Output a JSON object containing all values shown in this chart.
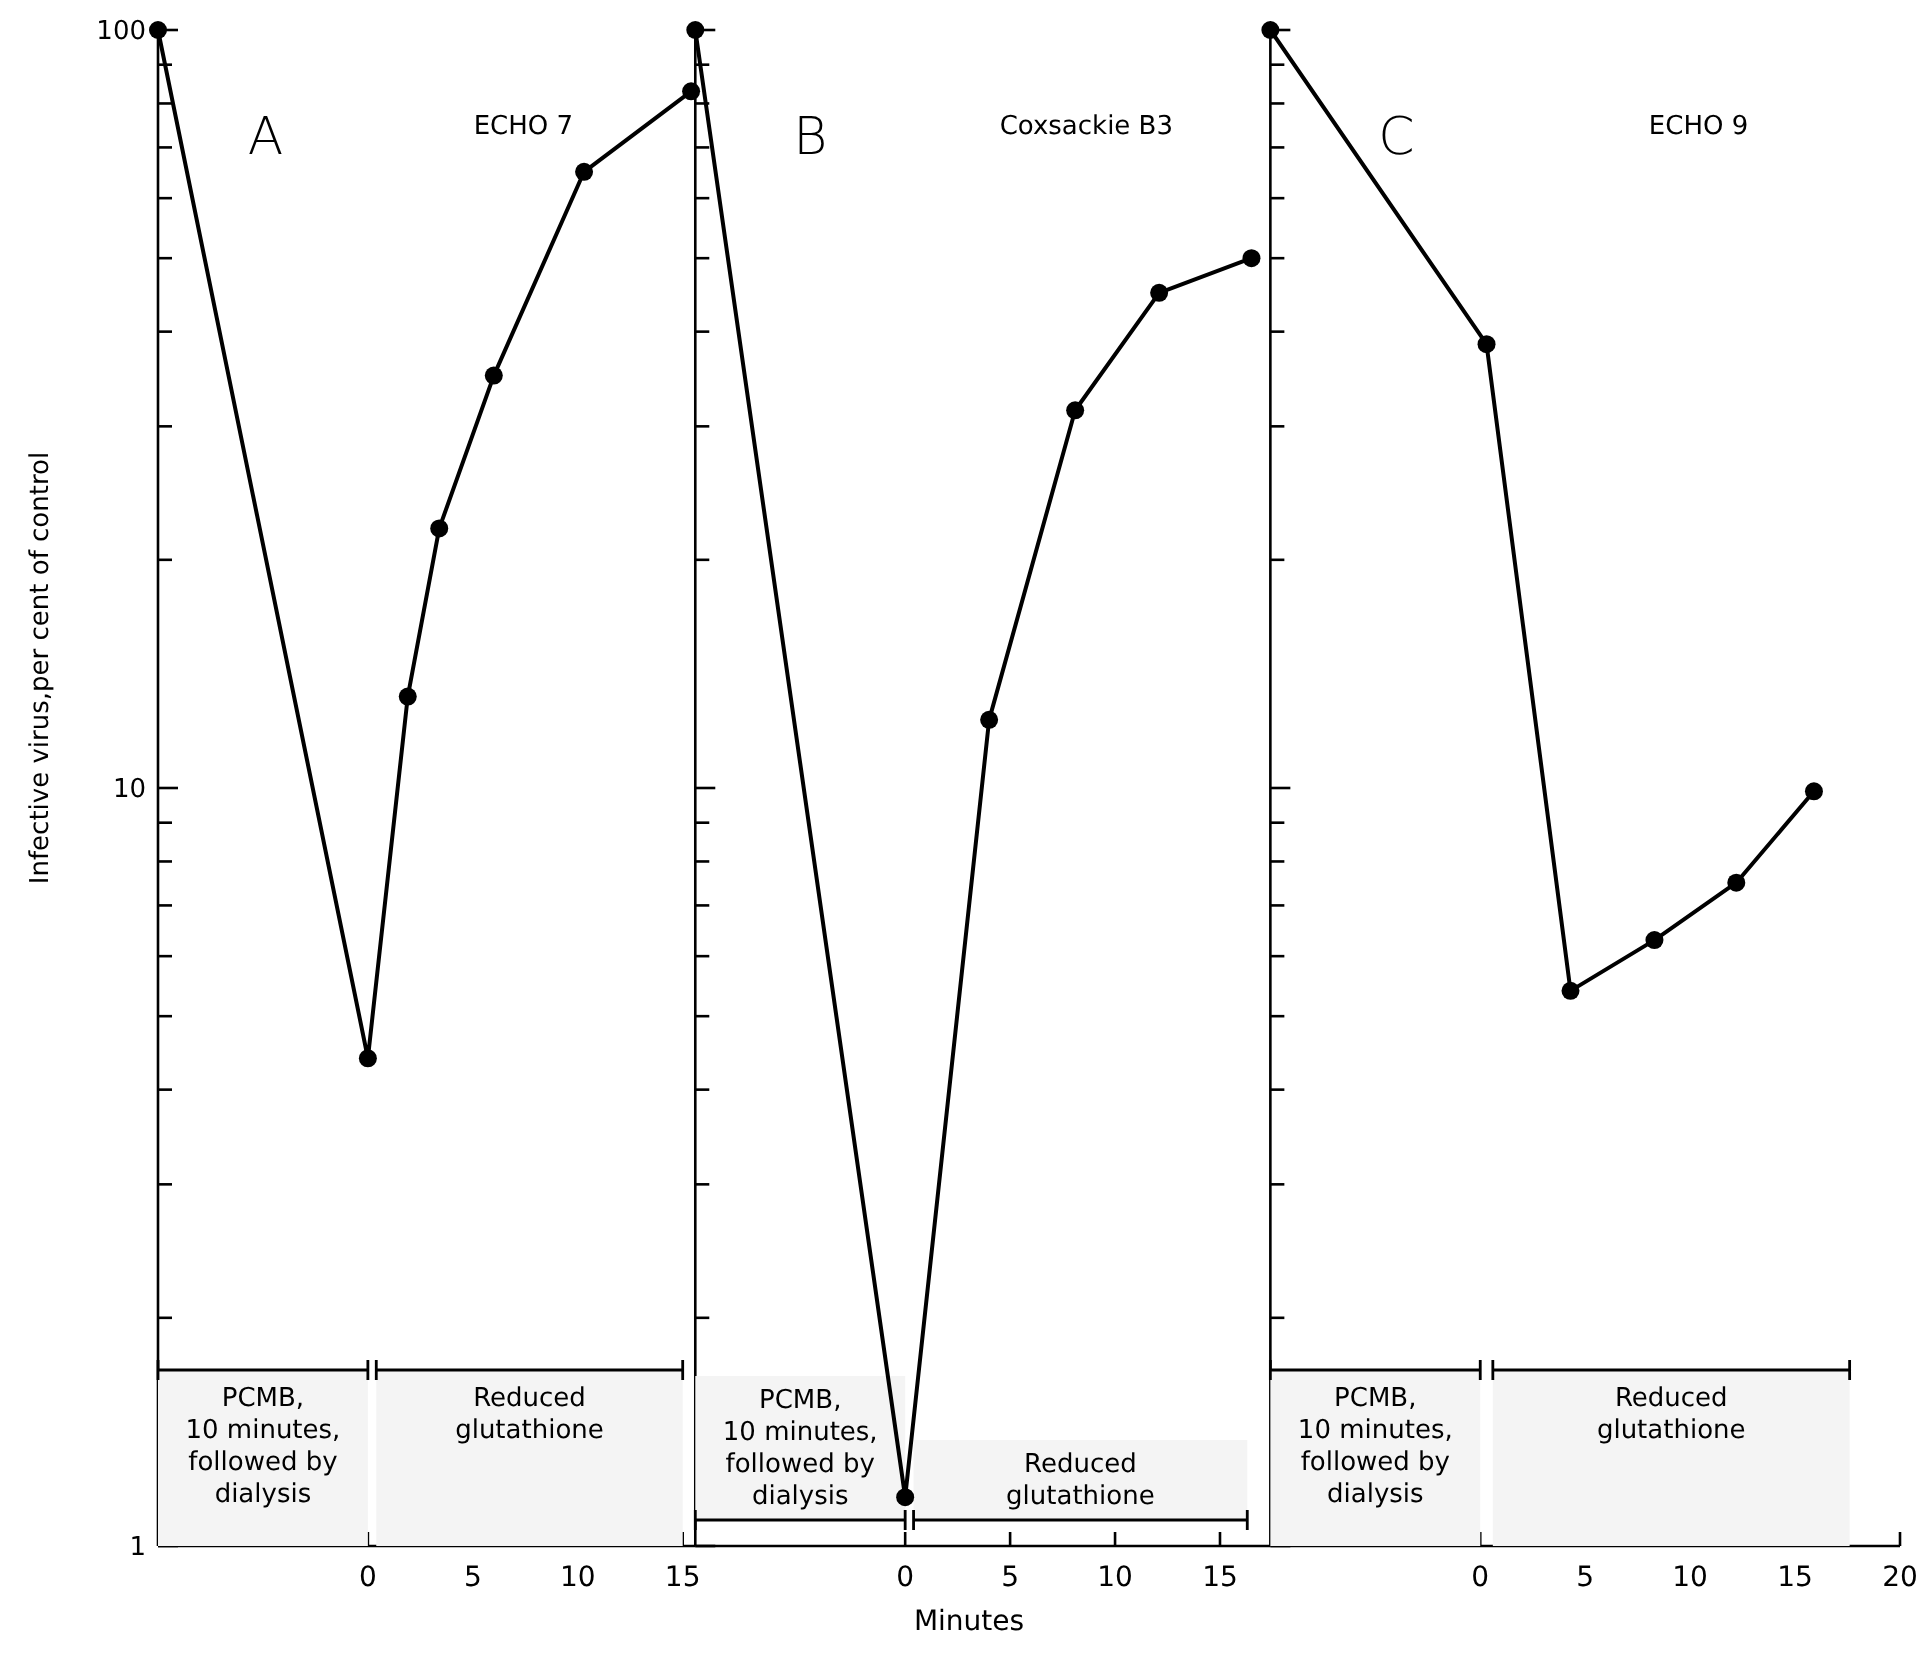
{
  "chart_data": [
    {
      "type": "line",
      "title": "A",
      "subtitle": "ECHO 7",
      "ylabel": "Infective virus,per cent of control",
      "log": true,
      "marker": "circle",
      "line_style": "solid",
      "xlim": [
        -10,
        15.6
      ],
      "xticks": [
        0,
        5,
        10,
        15
      ],
      "ylim": [
        1,
        100
      ],
      "yticks": [
        1,
        {
          "value": 2,
          "label": null
        },
        {
          "value": 3,
          "label": null
        },
        {
          "value": 4,
          "label": null
        },
        {
          "value": 5,
          "label": null
        },
        {
          "value": 6,
          "label": null
        },
        {
          "value": 7,
          "label": null
        },
        {
          "value": 8,
          "label": null
        },
        {
          "value": 9,
          "label": null
        },
        10,
        {
          "value": 20,
          "label": null
        },
        {
          "value": 30,
          "label": null
        },
        {
          "value": 40,
          "label": null
        },
        {
          "value": 50,
          "label": null
        },
        {
          "value": 60,
          "label": null
        },
        {
          "value": 70,
          "label": null
        },
        {
          "value": 80,
          "label": null
        },
        {
          "value": 90,
          "label": null
        },
        100
      ],
      "series": [
        {
          "color": "#000000",
          "x": [
            -10,
            0,
            1.9,
            3.4,
            6,
            10.3,
            15.4
          ],
          "values": [
            100,
            4.4,
            13.2,
            22,
            35,
            65,
            83
          ]
        }
      ],
      "bands": [
        {
          "axis": "x",
          "from": -10,
          "to": 0,
          "label": "PCMB,\n10 minutes,\nfollowed by\ndialysis"
        },
        {
          "axis": "x",
          "from": 0.4,
          "to": 15,
          "label": "Reduced\nglutathione"
        }
      ]
    },
    {
      "type": "line",
      "title": "B",
      "subtitle": "Coxsackie B3",
      "xlabel": "Minutes",
      "log": true,
      "marker": "circle",
      "line_style": "solid",
      "tick_labels": "x",
      "xlim": [
        -10,
        17.4
      ],
      "xticks": [
        0,
        5,
        10,
        15
      ],
      "ylim": [
        1,
        100
      ],
      "yticks": [
        1,
        {
          "value": 2,
          "label": null
        },
        {
          "value": 3,
          "label": null
        },
        {
          "value": 4,
          "label": null
        },
        {
          "value": 5,
          "label": null
        },
        {
          "value": 6,
          "label": null
        },
        {
          "value": 7,
          "label": null
        },
        {
          "value": 8,
          "label": null
        },
        {
          "value": 9,
          "label": null
        },
        10,
        {
          "value": 20,
          "label": null
        },
        {
          "value": 30,
          "label": null
        },
        {
          "value": 40,
          "label": null
        },
        {
          "value": 50,
          "label": null
        },
        {
          "value": 60,
          "label": null
        },
        {
          "value": 70,
          "label": null
        },
        {
          "value": 80,
          "label": null
        },
        {
          "value": 90,
          "label": null
        },
        100
      ],
      "series": [
        {
          "color": "#000000",
          "x": [
            -10,
            0,
            4,
            8.1,
            12.1,
            16.5
          ],
          "values": [
            100,
            1.16,
            12.3,
            31.5,
            45,
            50
          ]
        }
      ],
      "bands": [
        {
          "axis": "x",
          "from": -10,
          "to": 0,
          "label": "PCMB,\n10 minutes,\nfollowed by\ndialysis"
        },
        {
          "axis": "x",
          "from": 0.4,
          "to": 16.3,
          "label": "Reduced\nglutathione"
        }
      ]
    },
    {
      "type": "line",
      "title": "C",
      "subtitle": "ECHO 9",
      "log": true,
      "marker": "circle",
      "line_style": "solid",
      "tick_labels": "x",
      "xlim": [
        -10,
        20
      ],
      "xticks": [
        0,
        5,
        10,
        15,
        20
      ],
      "ylim": [
        1,
        100
      ],
      "yticks": [
        1,
        {
          "value": 2,
          "label": null
        },
        {
          "value": 3,
          "label": null
        },
        {
          "value": 4,
          "label": null
        },
        {
          "value": 5,
          "label": null
        },
        {
          "value": 6,
          "label": null
        },
        {
          "value": 7,
          "label": null
        },
        {
          "value": 8,
          "label": null
        },
        {
          "value": 9,
          "label": null
        },
        10,
        {
          "value": 20,
          "label": null
        },
        {
          "value": 30,
          "label": null
        },
        {
          "value": 40,
          "label": null
        },
        {
          "value": 50,
          "label": null
        },
        {
          "value": 60,
          "label": null
        },
        {
          "value": 70,
          "label": null
        },
        {
          "value": 80,
          "label": null
        },
        {
          "value": 90,
          "label": null
        },
        100
      ],
      "series": [
        {
          "color": "#000000",
          "x": [
            -10,
            0.3,
            4.3,
            8.3,
            12.2,
            15.9
          ],
          "values": [
            100,
            38.5,
            5.4,
            6.3,
            7.5,
            9.9
          ]
        }
      ],
      "bands": [
        {
          "axis": "x",
          "from": -10,
          "to": 0,
          "label": "PCMB,\n10 minutes,\nfollowed by\ndialysis"
        },
        {
          "axis": "x",
          "from": 0.6,
          "to": 17.6,
          "label": "Reduced\nglutathione"
        }
      ]
    }
  ]
}
